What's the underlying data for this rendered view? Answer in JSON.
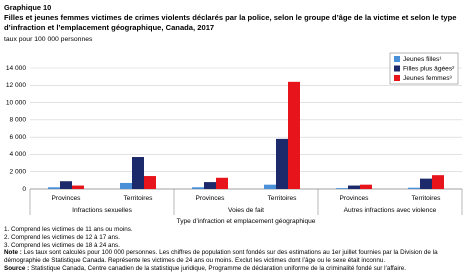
{
  "chart_data": {
    "type": "bar",
    "chart_label": "Graphique 10",
    "title": "Filles et jeunes femmes victimes de crimes violents déclarés par la police, selon le groupe d’âge de la victime et selon le type d’infraction et l’emplacement géographique, Canada, 2017",
    "y_label": "taux pour 100 000 personnes",
    "x_label": "Type d’infraction et emplacement géographique",
    "groups": [
      "Infractions sexuelles",
      "Voies de fait",
      "Autres infractions avec violence"
    ],
    "categories": [
      "Provinces",
      "Territoires",
      "Provinces",
      "Territoires",
      "Provinces",
      "Territoires"
    ],
    "series": [
      {
        "name": "Jeunes filles¹",
        "color": "#4a90d9",
        "values": [
          200,
          700,
          200,
          500,
          100,
          150
        ]
      },
      {
        "name": "Filles plus âgées²",
        "color": "#1c2a6b",
        "values": [
          900,
          3700,
          800,
          5800,
          400,
          1200
        ]
      },
      {
        "name": "Jeunes femmes³",
        "color": "#e8141c",
        "values": [
          400,
          1500,
          1300,
          12400,
          500,
          1600
        ]
      }
    ],
    "ylim": [
      0,
      14000
    ],
    "yticks": [
      0,
      2000,
      4000,
      6000,
      8000,
      10000,
      12000,
      14000
    ],
    "ytick_labels": [
      "0",
      "2 000",
      "4 000",
      "6 000",
      "8 000",
      "10 000",
      "12 000",
      "14 000"
    ],
    "grid": true,
    "legend": "top-right",
    "footnotes": [
      "1. Comprend les victimes de 11 ans ou moins.",
      "2. Comprend les victimes de 12 à 17 ans.",
      "3. Comprend les victimes de 18 à 24 ans."
    ],
    "note": {
      "label": "Note :",
      "text": "Les taux sont calculés pour 100 000 personnes. Les chiffres de population sont fondés sur des estimations au 1er juillet fournies par la Division de la démographie de Statistique Canada. Représente les victimes de 24 ans ou moins. Exclut les victimes dont l’âge ou le sexe était inconnu."
    },
    "source": {
      "label": "Source :",
      "text": "Statistique Canada, Centre canadien de la statistique juridique, Programme de déclaration uniforme de la criminalité fondé sur l’affaire."
    }
  }
}
